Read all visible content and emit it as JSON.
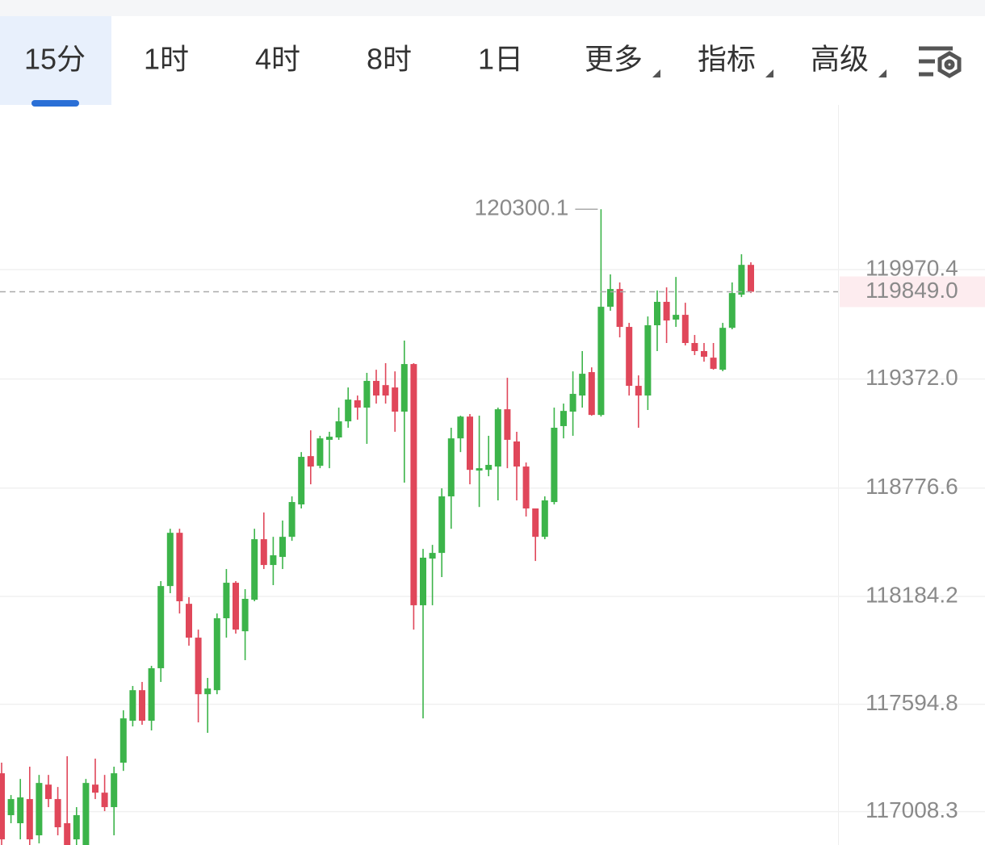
{
  "tabs": [
    "15分",
    "1时",
    "4时",
    "8时",
    "1日",
    "更多",
    "指标",
    "高级"
  ],
  "active_tab": 0,
  "chart_data": {
    "type": "candlestick",
    "up_color": "#3cb44a",
    "down_color": "#e0475a",
    "grid": true,
    "ylim": [
      116826,
      120870
    ],
    "yticks": [
      119970.4,
      {
        "value": 119372,
        "label": "119372.0"
      },
      118776.6,
      118184.2,
      117594.8,
      117008.3
    ],
    "current_price": {
      "value": 119849,
      "label": "119849.0"
    },
    "high_marker_index": 64,
    "open": [
      117218,
      116989,
      116945,
      117077,
      116879,
      117156,
      117077,
      116945,
      116857,
      116826,
      117156,
      117112,
      117033,
      117276,
      117505,
      117672,
      117505,
      117792,
      118241,
      118532,
      118144,
      117959,
      117650,
      117672,
      118065,
      118259,
      117994,
      118166,
      118497,
      118356,
      118400,
      118510,
      118687,
      118951,
      118898,
      119040,
      119053,
      119141,
      119256,
      119216,
      119362,
      119339,
      119326,
      119194,
      119454,
      118136,
      118391,
      118422,
      118731,
      119048,
      119167,
      118872,
      118876,
      118894,
      119207,
      119031,
      118894,
      118665,
      118510,
      118700,
      119115,
      119194,
      119282,
      119410,
      119176,
      119767,
      119864,
      119657,
      119335,
      119282,
      119666,
      119794,
      119697,
      119723,
      119569,
      119525,
      119489,
      119423,
      119652,
      119833,
      119996
    ],
    "high": [
      117276,
      117099,
      117187,
      117254,
      117209,
      117209,
      117143,
      117311,
      117033,
      117187,
      117298,
      117209,
      117254,
      117562,
      117695,
      117717,
      117805,
      118268,
      118554,
      118554,
      118180,
      118003,
      117739,
      118091,
      118334,
      118268,
      118224,
      118554,
      118643,
      118510,
      118599,
      118731,
      118973,
      119092,
      119062,
      119084,
      119216,
      119326,
      119282,
      119406,
      119423,
      119459,
      119414,
      119582,
      119459,
      118444,
      118466,
      118775,
      119106,
      119172,
      119181,
      119172,
      119062,
      119216,
      119379,
      119084,
      118916,
      118665,
      118731,
      119216,
      119238,
      119414,
      119525,
      119436,
      120300.1,
      119944,
      119900,
      119679,
      119392,
      119714,
      119856,
      119873,
      119930,
      119789,
      119613,
      119569,
      119569,
      119679,
      119900,
      120054,
      120010
    ],
    "low": [
      116826,
      116945,
      116857,
      116826,
      116835,
      117033,
      116879,
      116826,
      116826,
      116826,
      117077,
      117011,
      116879,
      117231,
      117474,
      117483,
      117452,
      117717,
      118202,
      118091,
      117915,
      117496,
      117439,
      117650,
      117959,
      117981,
      117836,
      118158,
      118334,
      118246,
      118334,
      118488,
      118665,
      118797,
      118885,
      118885,
      119040,
      119106,
      119150,
      119018,
      119238,
      119238,
      119084,
      118806,
      118003,
      117518,
      118136,
      118290,
      118554,
      118973,
      118797,
      118673,
      118841,
      118709,
      118885,
      118709,
      118621,
      118378,
      118497,
      118687,
      119048,
      119062,
      119216,
      119172,
      119167,
      119745,
      119600,
      119282,
      119106,
      119203,
      119525,
      119569,
      119657,
      119556,
      119503,
      119467,
      119423,
      119415,
      119644,
      119820,
      119842
    ],
    "close": [
      116857,
      117077,
      117086,
      116857,
      117165,
      117077,
      116923,
      116826,
      116989,
      117165,
      117112,
      117033,
      117218,
      117518,
      117672,
      117505,
      117792,
      118241,
      118532,
      118158,
      117959,
      117650,
      117681,
      118065,
      118259,
      118003,
      118171,
      118497,
      118356,
      118409,
      118510,
      118700,
      118947,
      118894,
      119048,
      119057,
      119141,
      119260,
      119216,
      119362,
      119282,
      119282,
      119194,
      119454,
      118136,
      118396,
      118422,
      118731,
      119048,
      119167,
      118876,
      118885,
      118903,
      119207,
      119040,
      118894,
      118665,
      118510,
      118709,
      119106,
      119198,
      119291,
      119401,
      119176,
      119767,
      119864,
      119657,
      119335,
      119282,
      119666,
      119794,
      119692,
      119723,
      119569,
      119525,
      119494,
      119428,
      119652,
      119842,
      119996,
      119849
    ]
  }
}
